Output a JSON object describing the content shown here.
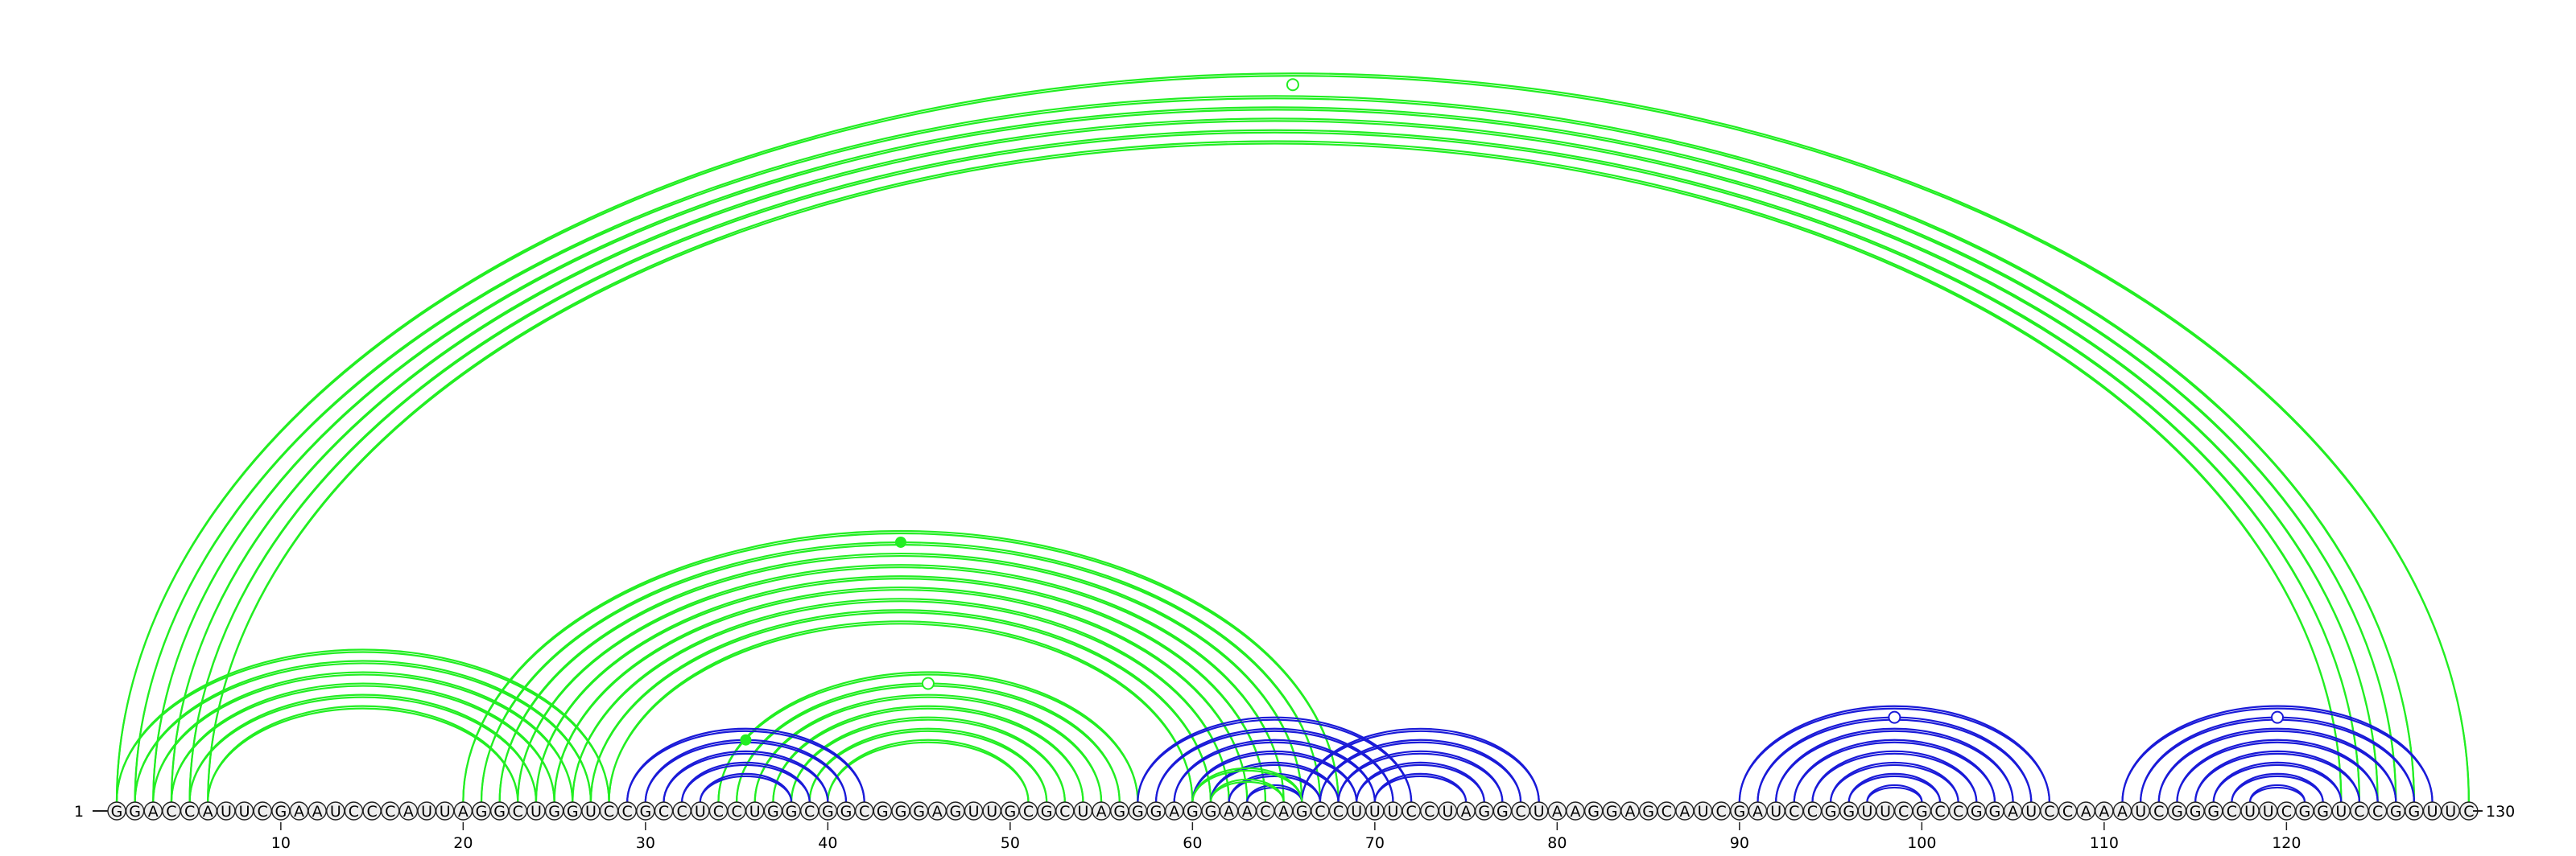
{
  "sequence": "GGACCAUUCGAAUCCCAUUAGGCUGGUCCGCCUCCUGGCGGCGGGAGUUGCGCUAGGGAGGAACAGCCUUUCCUAGGCUAAGGAGCAUCGAUCCGGUUCGCCGGAUCCAAAUCGGGCUUCGGUCCGGUUC",
  "start_index_label": "1",
  "end_index_label": "130",
  "tick_labels": [
    "10",
    "20",
    "30",
    "40",
    "50",
    "60",
    "70",
    "80",
    "90",
    "100",
    "110",
    "120"
  ],
  "colors": {
    "green": "#22ee22",
    "blue": "#1a1ad8",
    "circle_fill": "#eeeeee",
    "stroke": "#222222"
  },
  "arc_groups": [
    {
      "id": "long-helix",
      "color": "green",
      "pairs": [
        [
          1,
          130
        ],
        [
          2,
          127
        ],
        [
          3,
          126
        ],
        [
          4,
          125
        ],
        [
          5,
          124
        ],
        [
          6,
          123
        ]
      ],
      "marker": {
        "type": "open"
      }
    },
    {
      "id": "stem-a",
      "color": "green",
      "pairs": [
        [
          1,
          28
        ],
        [
          2,
          27
        ],
        [
          3,
          26
        ],
        [
          4,
          25
        ],
        [
          5,
          24
        ],
        [
          6,
          23
        ]
      ]
    },
    {
      "id": "stem-b",
      "color": "green",
      "pairs": [
        [
          20,
          68
        ],
        [
          21,
          67
        ],
        [
          22,
          66
        ],
        [
          23,
          65
        ],
        [
          24,
          64
        ],
        [
          25,
          63
        ],
        [
          26,
          62
        ],
        [
          27,
          61
        ],
        [
          28,
          60
        ]
      ],
      "marker": {
        "type": "filled"
      }
    },
    {
      "id": "stem-c",
      "color": "green",
      "pairs": [
        [
          34,
          57
        ],
        [
          35,
          56
        ],
        [
          36,
          55
        ],
        [
          37,
          54
        ],
        [
          38,
          53
        ],
        [
          39,
          52
        ],
        [
          40,
          51
        ]
      ],
      "marker": {
        "type": "open"
      }
    },
    {
      "id": "stem-d",
      "color": "blue",
      "pairs": [
        [
          29,
          42
        ],
        [
          30,
          41
        ],
        [
          31,
          40
        ],
        [
          32,
          39
        ],
        [
          33,
          38
        ]
      ],
      "marker": {
        "type": "filled-green"
      }
    },
    {
      "id": "stem-e",
      "color": "blue",
      "pairs": [
        [
          57,
          72
        ],
        [
          58,
          71
        ],
        [
          59,
          70
        ],
        [
          60,
          69
        ],
        [
          61,
          68
        ],
        [
          62,
          67
        ],
        [
          63,
          66
        ]
      ]
    },
    {
      "id": "stem-f",
      "color": "blue",
      "pairs": [
        [
          66,
          79
        ],
        [
          67,
          78
        ],
        [
          68,
          77
        ],
        [
          69,
          76
        ],
        [
          70,
          75
        ]
      ]
    },
    {
      "id": "stem-g",
      "color": "green",
      "pairs": [
        [
          60,
          66
        ],
        [
          61,
          65
        ]
      ]
    },
    {
      "id": "stem-h",
      "color": "blue",
      "pairs": [
        [
          90,
          107
        ],
        [
          91,
          106
        ],
        [
          92,
          105
        ],
        [
          93,
          104
        ],
        [
          94,
          103
        ],
        [
          95,
          102
        ],
        [
          96,
          101
        ],
        [
          97,
          100
        ]
      ],
      "marker": {
        "type": "open"
      }
    },
    {
      "id": "stem-i",
      "color": "blue",
      "pairs": [
        [
          111,
          128
        ],
        [
          112,
          127
        ],
        [
          113,
          126
        ],
        [
          114,
          125
        ],
        [
          115,
          124
        ],
        [
          116,
          123
        ],
        [
          117,
          122
        ],
        [
          118,
          121
        ]
      ],
      "marker": {
        "type": "open"
      }
    }
  ]
}
